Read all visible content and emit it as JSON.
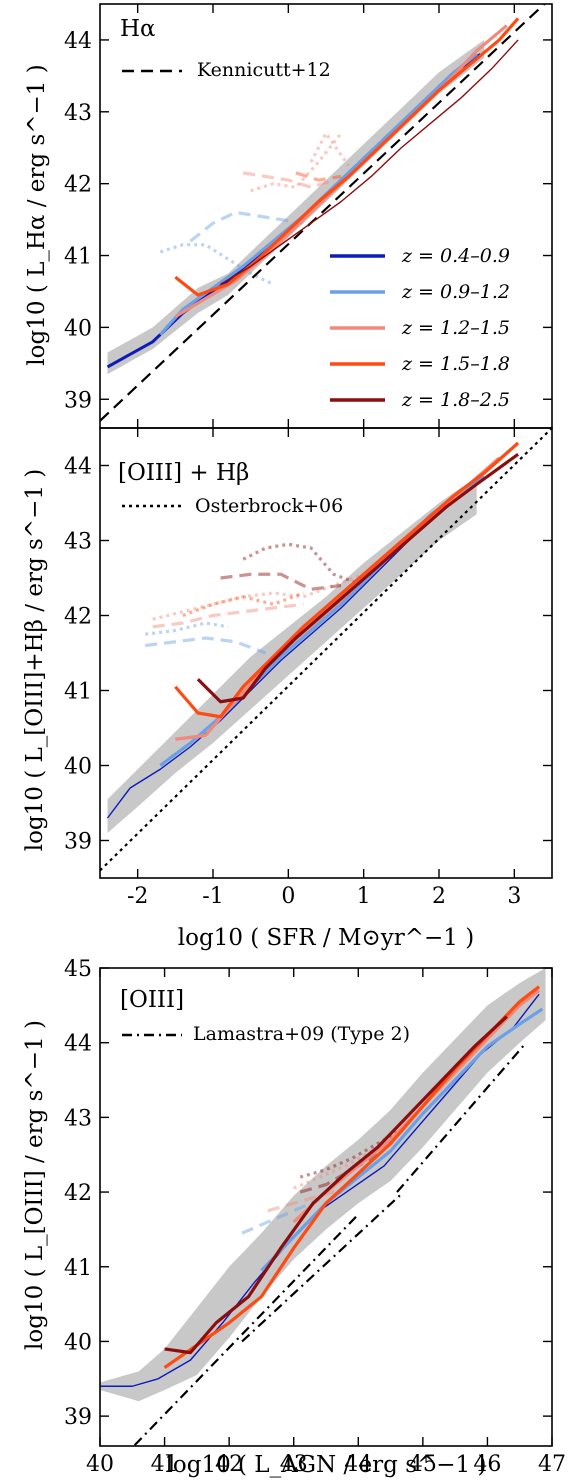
{
  "colors": {
    "z1": "#0d1bb8",
    "z2": "#6b9fe6",
    "z3": "#f08a7a",
    "z4": "#ff4a12",
    "z5": "#8c0d0d",
    "band": "#c8c8c8",
    "axis": "#000000"
  },
  "z_legend": [
    {
      "label": "z = 0.4–0.9",
      "color": "#0d1bb8"
    },
    {
      "label": "z = 0.9–1.2",
      "color": "#6b9fe6"
    },
    {
      "label": "z = 1.2–1.5",
      "color": "#f08a7a"
    },
    {
      "label": "z = 1.5–1.8",
      "color": "#ff4a12"
    },
    {
      "label": "z = 1.8–2.5",
      "color": "#8c0d0d"
    }
  ],
  "chart_data": [
    {
      "type": "line",
      "panel_label": "Hα",
      "ylabel": "log10 ( L_Hα / erg s^−1 )",
      "xlim": [
        -2.5,
        3.5
      ],
      "ylim": [
        38.6,
        44.5
      ],
      "xticks": [
        "-2",
        "-1",
        "0",
        "1",
        "2",
        "3"
      ],
      "xtick_values": [
        -2,
        -1,
        0,
        1,
        2,
        3
      ],
      "yticks": [
        "39",
        "40",
        "41",
        "42",
        "43",
        "44"
      ],
      "ytick_values": [
        39,
        40,
        41,
        42,
        43,
        44
      ],
      "reference": {
        "label": "Kennicutt+12",
        "style": "dashed",
        "x": [
          -2.5,
          3.5
        ],
        "y": [
          38.7,
          44.6
        ]
      },
      "band": {
        "x": [
          -2.4,
          -1.8,
          -1.2,
          -0.8,
          -0.4,
          0,
          0.5,
          1,
          1.5,
          2,
          2.6
        ],
        "lo": [
          39.35,
          39.7,
          40.2,
          40.45,
          40.85,
          41.25,
          41.75,
          42.25,
          42.75,
          43.25,
          43.75
        ],
        "hi": [
          39.65,
          40.0,
          40.55,
          40.75,
          41.15,
          41.55,
          42.05,
          42.55,
          43.05,
          43.55,
          44.0
        ]
      },
      "series": [
        {
          "z": "0.4–0.9",
          "x": [
            -2.4,
            -1.8,
            -1.4,
            -1.0,
            -0.6,
            -0.2,
            0.2,
            0.6,
            1.0,
            1.4,
            1.8,
            2.2,
            2.55
          ],
          "y": [
            39.45,
            39.8,
            40.2,
            40.5,
            40.8,
            41.15,
            41.55,
            41.95,
            42.35,
            42.75,
            43.15,
            43.55,
            43.8
          ]
        },
        {
          "z": "0.9–1.2",
          "x": [
            -1.7,
            -1.4,
            -1.0,
            -0.6,
            -0.2,
            0.2,
            0.6,
            1.0,
            1.4,
            1.8,
            2.2,
            2.5
          ],
          "y": [
            39.9,
            40.25,
            40.55,
            40.85,
            41.2,
            41.55,
            41.95,
            42.35,
            42.75,
            43.15,
            43.55,
            43.8
          ]
        },
        {
          "z": "1.2–1.5",
          "x": [
            -1.5,
            -1.1,
            -0.7,
            -0.3,
            0.1,
            0.5,
            0.9,
            1.3,
            1.7,
            2.1,
            2.5,
            2.9
          ],
          "y": [
            40.15,
            40.4,
            40.65,
            41.0,
            41.4,
            41.8,
            42.2,
            42.6,
            43.0,
            43.4,
            43.85,
            44.2
          ]
        },
        {
          "z": "1.5–1.8",
          "x": [
            -1.5,
            -1.2,
            -0.8,
            -0.4,
            0.0,
            0.4,
            0.8,
            1.2,
            1.6,
            2.0,
            2.4,
            2.8,
            3.05
          ],
          "y": [
            40.7,
            40.45,
            40.6,
            40.95,
            41.35,
            41.75,
            42.1,
            42.5,
            42.9,
            43.3,
            43.65,
            44.0,
            44.3
          ]
        },
        {
          "z": "1.8–2.5",
          "x": [
            -0.9,
            -0.5,
            -0.1,
            0.3,
            0.7,
            1.1,
            1.5,
            1.9,
            2.3,
            2.7,
            3.05
          ],
          "y": [
            40.6,
            40.85,
            41.15,
            41.45,
            41.75,
            42.1,
            42.5,
            42.85,
            43.2,
            43.6,
            44.0
          ]
        }
      ],
      "faded_series": [
        {
          "z": "0.9–1.2",
          "style": "dotted",
          "x": [
            -1.7,
            -1.4,
            -1.1,
            -0.8,
            -0.5,
            -0.2
          ],
          "y": [
            41.05,
            41.15,
            41.15,
            40.95,
            40.75,
            40.6
          ]
        },
        {
          "z": "0.9–1.2",
          "style": "dashed",
          "x": [
            -1.3,
            -1.0,
            -0.7,
            -0.4,
            -0.1,
            0.2
          ],
          "y": [
            41.2,
            41.45,
            41.6,
            41.55,
            41.5,
            41.45
          ]
        },
        {
          "z": "1.2–1.5",
          "style": "dashed",
          "x": [
            -0.6,
            -0.3,
            0.0,
            0.3,
            0.6
          ],
          "y": [
            42.15,
            42.1,
            42.05,
            41.95,
            42.05
          ]
        },
        {
          "z": "1.2–1.5",
          "style": "dotted",
          "x": [
            -0.5,
            -0.2,
            0.1,
            0.4,
            0.7
          ],
          "y": [
            41.9,
            42.0,
            41.95,
            42.3,
            42.7
          ]
        },
        {
          "z": "1.5–1.8",
          "style": "dashed",
          "x": [
            0.1,
            0.4,
            0.7
          ],
          "y": [
            42.15,
            42.05,
            42.1
          ]
        },
        {
          "z": "1.2–1.5",
          "style": "dotted",
          "x": [
            0.3,
            0.5,
            0.8
          ],
          "y": [
            42.3,
            42.7,
            42.25
          ]
        }
      ]
    },
    {
      "type": "line",
      "panel_label": "[OIII] + Hβ",
      "ylabel": "log10 ( L_[OIII]+Hβ / erg s^−1 )",
      "xlabel": "log10 ( SFR / M⊙yr^−1 )",
      "xlim": [
        -2.5,
        3.5
      ],
      "ylim": [
        38.5,
        44.5
      ],
      "xticks": [
        "-2",
        "-1",
        "0",
        "1",
        "2",
        "3"
      ],
      "xtick_values": [
        -2,
        -1,
        0,
        1,
        2,
        3
      ],
      "yticks": [
        "39",
        "40",
        "41",
        "42",
        "43",
        "44"
      ],
      "ytick_values": [
        39,
        40,
        41,
        42,
        43,
        44
      ],
      "reference": {
        "label": "Osterbrock+06",
        "style": "dotted",
        "x": [
          -2.5,
          3.5
        ],
        "y": [
          38.6,
          44.5
        ]
      },
      "band": {
        "x": [
          -2.4,
          -2.0,
          -1.5,
          -1.0,
          -0.5,
          0,
          0.5,
          1,
          1.5,
          2,
          2.5
        ],
        "lo": [
          39.1,
          39.45,
          39.9,
          40.3,
          40.75,
          41.2,
          41.65,
          42.1,
          42.55,
          43.0,
          43.35
        ],
        "hi": [
          39.55,
          39.95,
          40.45,
          40.95,
          41.45,
          41.85,
          42.25,
          42.7,
          43.1,
          43.5,
          43.85
        ]
      },
      "series": [
        {
          "z": "0.4–0.9",
          "x": [
            -2.4,
            -2.1,
            -1.7,
            -1.3,
            -0.9,
            -0.5,
            -0.1,
            0.3,
            0.7,
            1.1,
            1.5,
            1.9,
            2.3,
            2.5
          ],
          "y": [
            39.3,
            39.7,
            39.95,
            40.25,
            40.6,
            41.0,
            41.4,
            41.75,
            42.1,
            42.5,
            42.9,
            43.3,
            43.65,
            43.8
          ]
        },
        {
          "z": "0.9–1.2",
          "x": [
            -1.7,
            -1.3,
            -0.9,
            -0.5,
            -0.1,
            0.3,
            0.7,
            1.1,
            1.5,
            1.9,
            2.3,
            2.6
          ],
          "y": [
            40.0,
            40.3,
            40.65,
            41.05,
            41.45,
            41.8,
            42.15,
            42.55,
            42.95,
            43.35,
            43.65,
            43.85
          ]
        },
        {
          "z": "1.2–1.5",
          "x": [
            -1.5,
            -1.1,
            -0.8,
            -0.4,
            0.0,
            0.4,
            0.8,
            1.2,
            1.6,
            2.0,
            2.4,
            2.8
          ],
          "y": [
            40.35,
            40.4,
            40.75,
            41.2,
            41.6,
            41.95,
            42.3,
            42.7,
            43.05,
            43.4,
            43.75,
            44.1
          ]
        },
        {
          "z": "1.5–1.8",
          "x": [
            -1.5,
            -1.2,
            -0.9,
            -0.6,
            -0.2,
            0.2,
            0.6,
            1.0,
            1.4,
            1.8,
            2.2,
            2.6,
            3.05
          ],
          "y": [
            41.05,
            40.7,
            40.65,
            41.05,
            41.45,
            41.85,
            42.2,
            42.55,
            42.9,
            43.25,
            43.6,
            43.9,
            44.3
          ]
        },
        {
          "z": "1.8–2.5",
          "x": [
            -1.2,
            -0.9,
            -0.6,
            -0.3,
            0.1,
            0.5,
            0.9,
            1.3,
            1.7,
            2.1,
            2.5,
            3.05
          ],
          "y": [
            41.15,
            40.85,
            40.9,
            41.3,
            41.7,
            42.05,
            42.4,
            42.75,
            43.1,
            43.45,
            43.75,
            44.15
          ]
        }
      ],
      "faded_series": [
        {
          "z": "0.9–1.2",
          "style": "dashed",
          "x": [
            -1.9,
            -1.5,
            -1.1,
            -0.7,
            -0.3
          ],
          "y": [
            41.6,
            41.65,
            41.7,
            41.65,
            41.5
          ]
        },
        {
          "z": "0.9–1.2",
          "style": "dotted",
          "x": [
            -1.9,
            -1.5,
            -1.1,
            -0.8
          ],
          "y": [
            41.75,
            41.8,
            41.9,
            41.85
          ]
        },
        {
          "z": "1.2–1.5",
          "style": "dashed",
          "x": [
            -1.8,
            -1.4,
            -1.0,
            -0.6,
            -0.2,
            0.2
          ],
          "y": [
            41.85,
            41.9,
            42.0,
            42.05,
            42.1,
            42.15
          ]
        },
        {
          "z": "1.2–1.5",
          "style": "dotted",
          "x": [
            -1.8,
            -1.4,
            -1.0,
            -0.6,
            -0.2,
            0.2,
            0.6,
            1.0
          ],
          "y": [
            41.95,
            42.05,
            42.15,
            42.25,
            42.3,
            42.25,
            42.4,
            42.55
          ]
        },
        {
          "z": "1.5–1.8",
          "style": "dotted",
          "x": [
            -1.4,
            -1.0,
            -0.6,
            -0.2,
            0.2
          ],
          "y": [
            42.0,
            42.15,
            42.25,
            42.15,
            42.3
          ]
        },
        {
          "z": "1.8–2.5",
          "style": "dashed",
          "x": [
            -0.9,
            -0.5,
            -0.1,
            0.3,
            0.7
          ],
          "y": [
            42.5,
            42.55,
            42.55,
            42.35,
            42.4
          ]
        },
        {
          "z": "1.8–2.5",
          "style": "dotted",
          "x": [
            -0.6,
            -0.3,
            0.0,
            0.3,
            0.6,
            1.0
          ],
          "y": [
            42.75,
            42.9,
            42.95,
            42.9,
            42.55,
            42.4
          ]
        }
      ]
    },
    {
      "type": "line",
      "panel_label": "[OIII]",
      "ylabel": "log10 ( L_[OIII] / erg s^−1 )",
      "xlabel": "log10 ( L_AGN / erg s^−1 )",
      "xlim": [
        40,
        47
      ],
      "ylim": [
        38.6,
        45
      ],
      "xticks": [
        "40",
        "41",
        "42",
        "43",
        "44",
        "45",
        "46",
        "47"
      ],
      "xtick_values": [
        40,
        41,
        42,
        43,
        44,
        45,
        46,
        47
      ],
      "yticks": [
        "39",
        "40",
        "41",
        "42",
        "43",
        "44",
        "45"
      ],
      "ytick_values": [
        39,
        40,
        41,
        42,
        43,
        44,
        45
      ],
      "reference": {
        "label": "Lamastra+09 (Type 2)",
        "style": "dashdot",
        "segments": [
          {
            "x": [
              40.3,
              44.0
            ],
            "y": [
              38.4,
              41.7
            ]
          },
          {
            "x": [
              42.2,
              44.7
            ],
            "y": [
              40.0,
              42.0
            ]
          },
          {
            "x": [
              44.6,
              46.6
            ],
            "y": [
              42.0,
              44.0
            ]
          }
        ]
      },
      "band": {
        "x": [
          40.0,
          40.6,
          41.0,
          41.5,
          42.0,
          42.5,
          43.0,
          43.5,
          44.0,
          44.5,
          45.0,
          45.5,
          46.0,
          46.5,
          46.9
        ],
        "lo": [
          39.35,
          39.2,
          39.35,
          39.55,
          40.05,
          40.6,
          41.1,
          41.5,
          41.85,
          42.15,
          42.6,
          43.1,
          43.6,
          44.0,
          44.3
        ],
        "hi": [
          39.45,
          39.6,
          39.9,
          40.45,
          41.0,
          41.45,
          41.95,
          42.35,
          42.7,
          43.1,
          43.6,
          44.05,
          44.5,
          44.8,
          45.0
        ]
      },
      "series": [
        {
          "z": "0.4–0.9",
          "x": [
            40.0,
            40.5,
            40.9,
            41.4,
            41.9,
            42.4,
            42.9,
            43.4,
            43.9,
            44.4,
            44.9,
            45.4,
            45.9,
            46.4,
            46.8
          ],
          "y": [
            39.4,
            39.4,
            39.5,
            39.75,
            40.25,
            40.8,
            41.3,
            41.75,
            42.05,
            42.35,
            42.85,
            43.35,
            43.85,
            44.2,
            44.65
          ]
        },
        {
          "z": "0.9–1.2",
          "x": [
            42.5,
            43.0,
            43.5,
            44.0,
            44.5,
            45.0,
            45.5,
            46.0,
            46.5,
            46.85
          ],
          "y": [
            40.95,
            41.4,
            41.85,
            42.2,
            42.55,
            43.05,
            43.5,
            43.95,
            44.25,
            44.45
          ]
        },
        {
          "z": "1.2–1.5",
          "x": [
            43.0,
            43.5,
            44.0,
            44.5,
            45.0,
            45.5,
            46.0,
            46.5,
            46.8
          ],
          "y": [
            41.6,
            42.0,
            42.35,
            42.7,
            43.15,
            43.6,
            44.05,
            44.5,
            44.7
          ]
        },
        {
          "z": "1.5–1.8",
          "x": [
            41.0,
            41.5,
            42.0,
            42.5,
            43.0,
            43.5,
            44.0,
            44.5,
            45.0,
            45.5,
            46.0,
            46.5,
            46.8
          ],
          "y": [
            39.65,
            39.95,
            40.25,
            40.6,
            41.25,
            41.85,
            42.25,
            42.65,
            43.15,
            43.65,
            44.1,
            44.55,
            44.75
          ]
        },
        {
          "z": "1.8–2.5",
          "x": [
            41.0,
            41.4,
            41.8,
            42.3,
            42.8,
            43.3,
            43.8,
            44.3,
            44.8,
            45.3,
            45.8,
            46.3
          ],
          "y": [
            39.9,
            39.85,
            40.25,
            40.6,
            41.25,
            41.85,
            42.25,
            42.6,
            43.05,
            43.5,
            43.95,
            44.35
          ]
        }
      ],
      "faded_series": [
        {
          "z": "0.9–1.2",
          "style": "dashed",
          "x": [
            42.2,
            42.6,
            43.0,
            43.4
          ],
          "y": [
            41.45,
            41.6,
            41.75,
            41.9
          ]
        },
        {
          "z": "1.2–1.5",
          "style": "dashed",
          "x": [
            42.6,
            43.0,
            43.4,
            43.8
          ],
          "y": [
            41.75,
            41.85,
            41.95,
            42.05
          ]
        },
        {
          "z": "1.2–1.5",
          "style": "dotted",
          "x": [
            43.0,
            43.4,
            43.8,
            44.2
          ],
          "y": [
            42.05,
            42.2,
            42.35,
            42.55
          ]
        },
        {
          "z": "1.8–2.5",
          "style": "dashed",
          "x": [
            43.1,
            43.5,
            43.9,
            44.3
          ],
          "y": [
            42.0,
            42.1,
            42.3,
            42.5
          ]
        },
        {
          "z": "1.8–2.5",
          "style": "dotted",
          "x": [
            43.1,
            43.5,
            43.9,
            44.3,
            44.6
          ],
          "y": [
            42.2,
            42.3,
            42.45,
            42.65,
            42.8
          ]
        }
      ]
    }
  ]
}
